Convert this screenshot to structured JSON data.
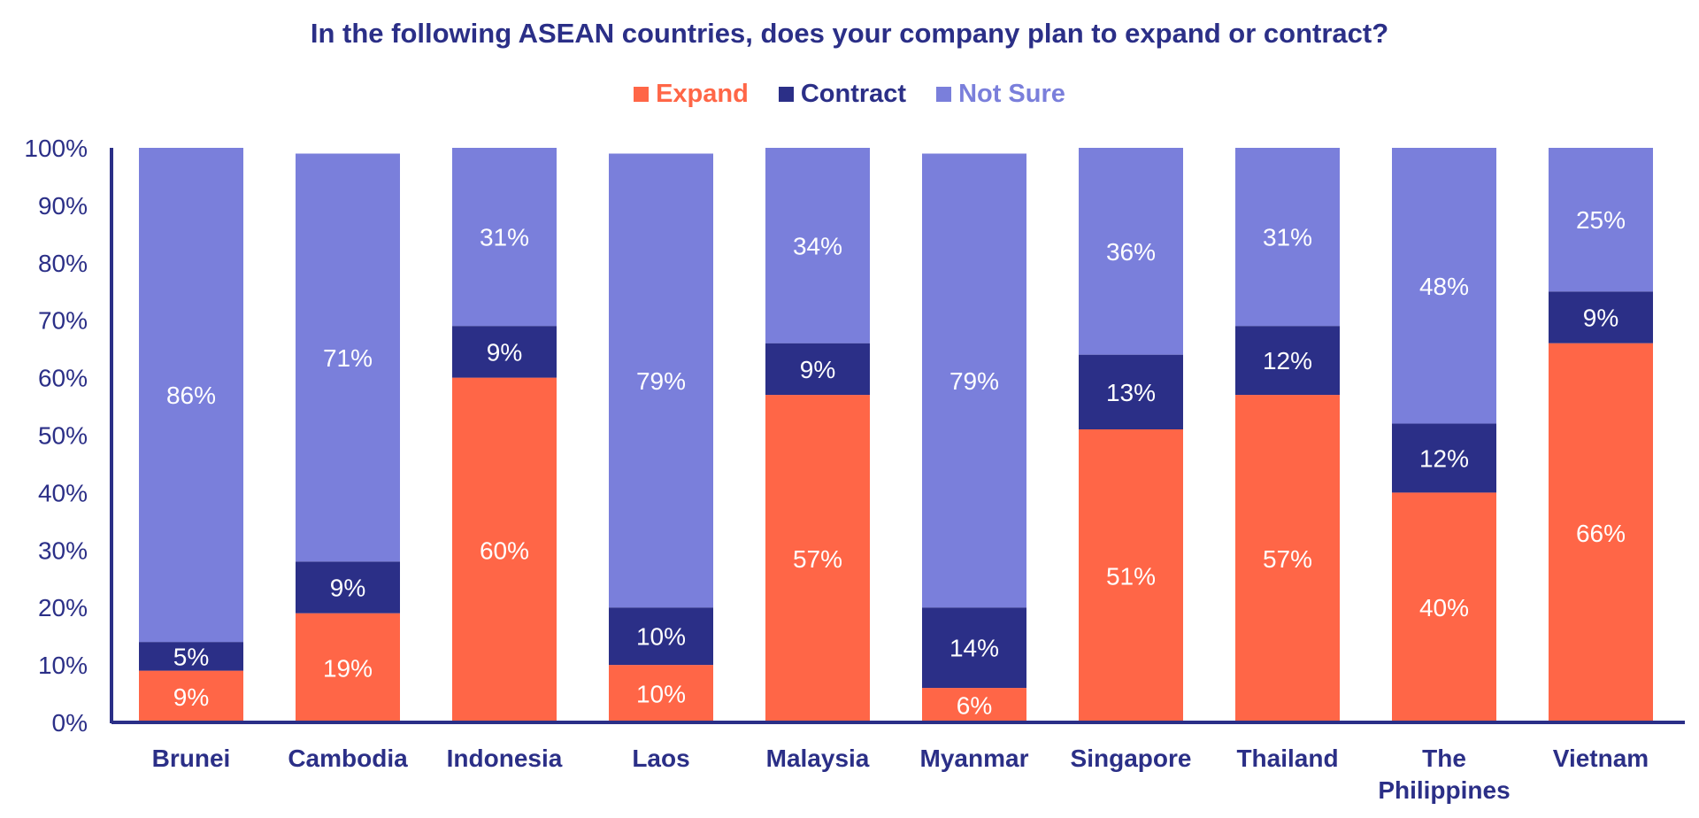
{
  "chart_data": {
    "type": "bar",
    "stacked": true,
    "title": "In the following ASEAN countries, does your company plan to expand or contract?",
    "categories": [
      "Brunei",
      "Cambodia",
      "Indonesia",
      "Laos",
      "Malaysia",
      "Myanmar",
      "Singapore",
      "Thailand",
      "The Philippines",
      "Vietnam"
    ],
    "series": [
      {
        "name": "Expand",
        "color": "#ff6647",
        "values": [
          9,
          19,
          60,
          10,
          57,
          6,
          51,
          57,
          40,
          66
        ],
        "labels": [
          "9%",
          "19%",
          "60%",
          "10%",
          "57%",
          "6%",
          "51%",
          "57%",
          "40%",
          "66%"
        ]
      },
      {
        "name": "Contract",
        "color": "#2b2f87",
        "values": [
          5,
          9,
          9,
          10,
          9,
          14,
          13,
          12,
          12,
          9
        ],
        "labels": [
          "5%",
          "9%",
          "9%",
          "10%",
          "9%",
          "14%",
          "13%",
          "12%",
          "12%",
          "9%"
        ]
      },
      {
        "name": "Not Sure",
        "color": "#7a7fdb",
        "values": [
          86,
          71,
          31,
          79,
          34,
          79,
          36,
          31,
          48,
          25
        ],
        "labels": [
          "86%",
          "71%",
          "31%",
          "79%",
          "34%",
          "79%",
          "36%",
          "31%",
          "48%",
          "25%"
        ]
      }
    ],
    "ylim": [
      0,
      100
    ],
    "yticks": [
      0,
      10,
      20,
      30,
      40,
      50,
      60,
      70,
      80,
      90,
      100
    ],
    "ytick_labels": [
      "0%",
      "10%",
      "20%",
      "30%",
      "40%",
      "50%",
      "60%",
      "70%",
      "80%",
      "90%",
      "100%"
    ],
    "legend_position": "top-center",
    "grid": false
  }
}
